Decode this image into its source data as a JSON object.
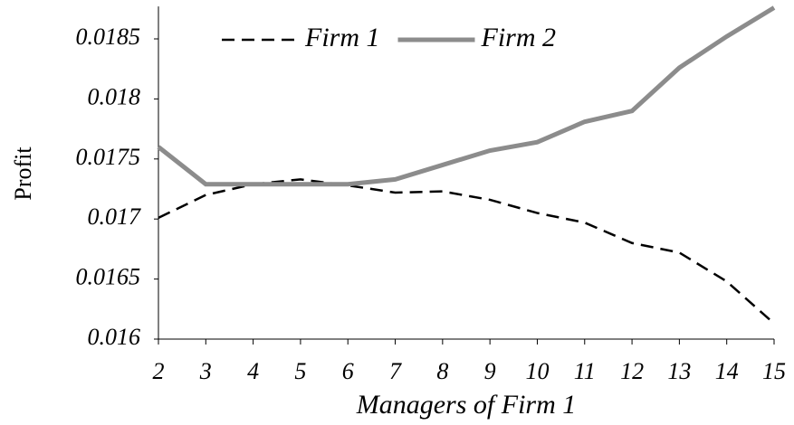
{
  "chart_data": {
    "type": "line",
    "x_label": "Managers of Firm 1",
    "y_label": "Profit",
    "x": [
      2,
      3,
      4,
      5,
      6,
      7,
      8,
      9,
      10,
      11,
      12,
      13,
      14,
      15
    ],
    "series": [
      {
        "name": "Firm 1",
        "color": "#000000",
        "dash": true,
        "values": [
          0.01701,
          0.0172,
          0.01729,
          0.01733,
          0.01728,
          0.01722,
          0.01723,
          0.01716,
          0.01705,
          0.01697,
          0.0168,
          0.01672,
          0.01648,
          0.01613
        ]
      },
      {
        "name": "Firm 2",
        "color": "#8c8c8c",
        "dash": false,
        "values": [
          0.0176,
          0.01729,
          0.01729,
          0.01729,
          0.01729,
          0.01733,
          0.01745,
          0.01757,
          0.01764,
          0.01781,
          0.0179,
          0.01826,
          0.01852,
          0.01876
        ]
      }
    ],
    "xlim": [
      2,
      15
    ],
    "xticks": [
      2,
      3,
      4,
      5,
      6,
      7,
      8,
      9,
      10,
      11,
      12,
      13,
      14,
      15
    ],
    "ylim": [
      0.016,
      0.01877
    ],
    "yticks": [
      0.016,
      0.0165,
      0.017,
      0.0175,
      0.018,
      0.0185
    ],
    "grid": false,
    "legend": "top"
  }
}
